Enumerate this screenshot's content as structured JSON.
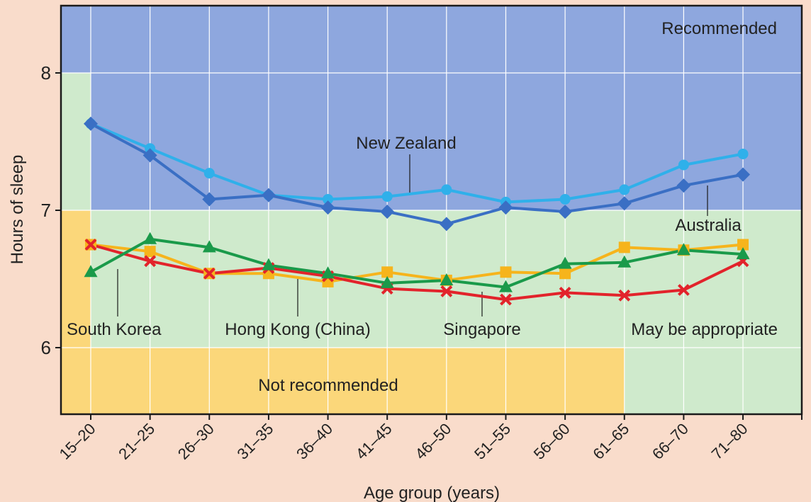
{
  "chart_data": {
    "type": "line",
    "title": "",
    "xlabel": "Age group (years)",
    "ylabel": "Hours of sleep",
    "categories": [
      "15–20",
      "21–25",
      "26–30",
      "31–35",
      "36–40",
      "41–45",
      "46–50",
      "51–55",
      "56–60",
      "61–65",
      "66–70",
      "71–80"
    ],
    "yticks": [
      6,
      7,
      8
    ],
    "ylim": [
      5.5,
      8.5
    ],
    "grid": true,
    "zones": [
      {
        "name": "Recommended",
        "color": "#8ea7de"
      },
      {
        "name": "May be appropriate",
        "color": "#cfeacc"
      },
      {
        "name": "Not recommended",
        "color": "#fbd77a"
      }
    ],
    "series": [
      {
        "name": "New Zealand",
        "color": "#2fb0ea",
        "marker": "circle",
        "values": [
          7.63,
          7.45,
          7.27,
          7.11,
          7.08,
          7.1,
          7.15,
          7.06,
          7.08,
          7.15,
          7.33,
          7.41
        ]
      },
      {
        "name": "Australia",
        "color": "#3a6fc4",
        "marker": "diamond",
        "values": [
          7.63,
          7.4,
          7.08,
          7.11,
          7.02,
          6.99,
          6.9,
          7.02,
          6.99,
          7.05,
          7.18,
          7.26
        ]
      },
      {
        "name": "Hong Kong (China)",
        "color": "#f6b41c",
        "marker": "square",
        "values": [
          6.75,
          6.7,
          6.54,
          6.54,
          6.48,
          6.55,
          6.49,
          6.55,
          6.54,
          6.73,
          6.71,
          6.75
        ]
      },
      {
        "name": "Singapore",
        "color": "#e2232b",
        "marker": "x",
        "values": [
          6.75,
          6.63,
          6.54,
          6.58,
          6.52,
          6.43,
          6.41,
          6.35,
          6.4,
          6.38,
          6.42,
          6.63
        ]
      },
      {
        "name": "South Korea",
        "color": "#1a9a4a",
        "marker": "triangle",
        "values": [
          6.55,
          6.79,
          6.73,
          6.6,
          6.54,
          6.47,
          6.49,
          6.44,
          6.61,
          6.62,
          6.71,
          6.68
        ]
      }
    ]
  }
}
